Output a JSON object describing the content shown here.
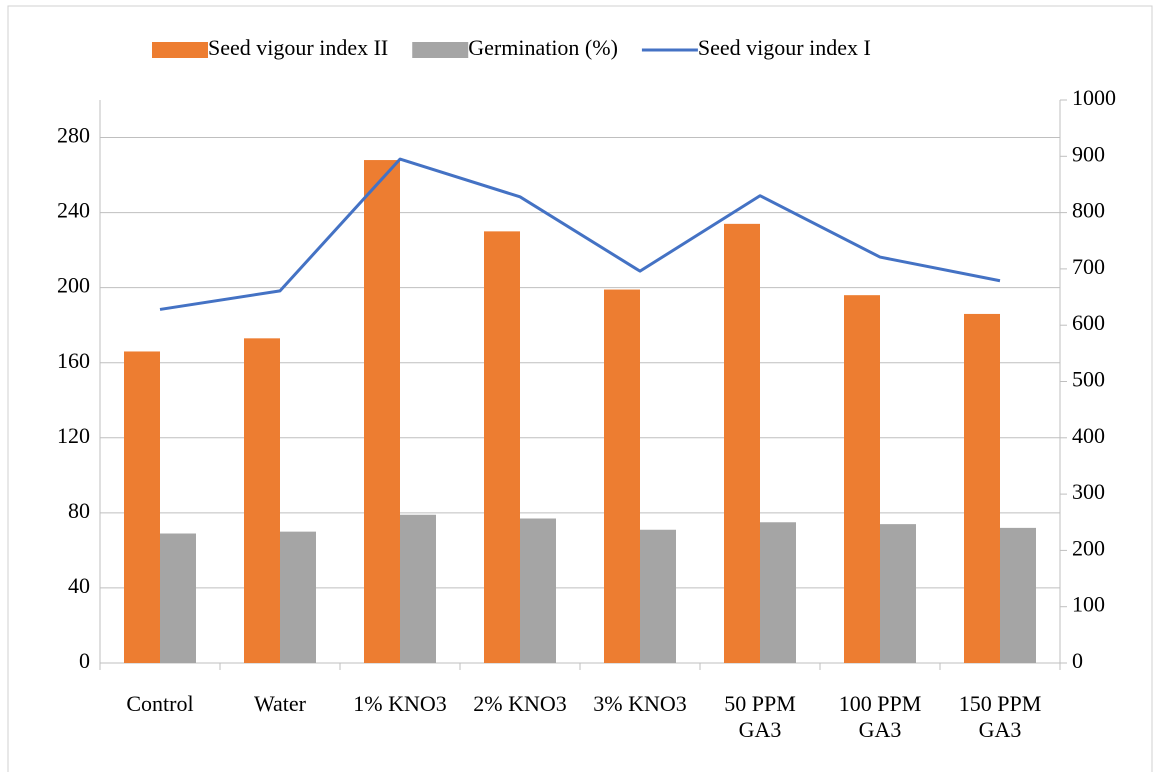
{
  "chart_data": {
    "type": "bar",
    "categories": [
      "Control",
      "Water",
      "1% KNO3",
      "2% KNO3",
      "3% KNO3",
      "50 PPM\nGA3",
      "100 PPM\nGA3",
      "150 PPM\nGA3"
    ],
    "series": [
      {
        "name": "Seed vigour index II",
        "color": "#ed7d31",
        "type": "bar",
        "values": [
          166,
          173,
          268,
          230,
          199,
          234,
          196,
          186
        ]
      },
      {
        "name": "Germination (%)",
        "color": "#a5a5a5",
        "type": "bar",
        "values": [
          69,
          70,
          79,
          77,
          71,
          75,
          74,
          72
        ]
      },
      {
        "name": "Seed vigour index I",
        "color": "#4472c4",
        "type": "line",
        "axis": "y2",
        "values": [
          628,
          661,
          895,
          828,
          696,
          830,
          721,
          679
        ]
      }
    ],
    "ylim": [
      0,
      300
    ],
    "yticks": [
      0,
      40,
      80,
      120,
      160,
      200,
      240,
      280
    ],
    "y2lim": [
      0,
      1000
    ],
    "y2ticks": [
      0,
      100,
      200,
      300,
      400,
      500,
      600,
      700,
      800,
      900,
      1000
    ],
    "grid": true,
    "legend": "top"
  }
}
